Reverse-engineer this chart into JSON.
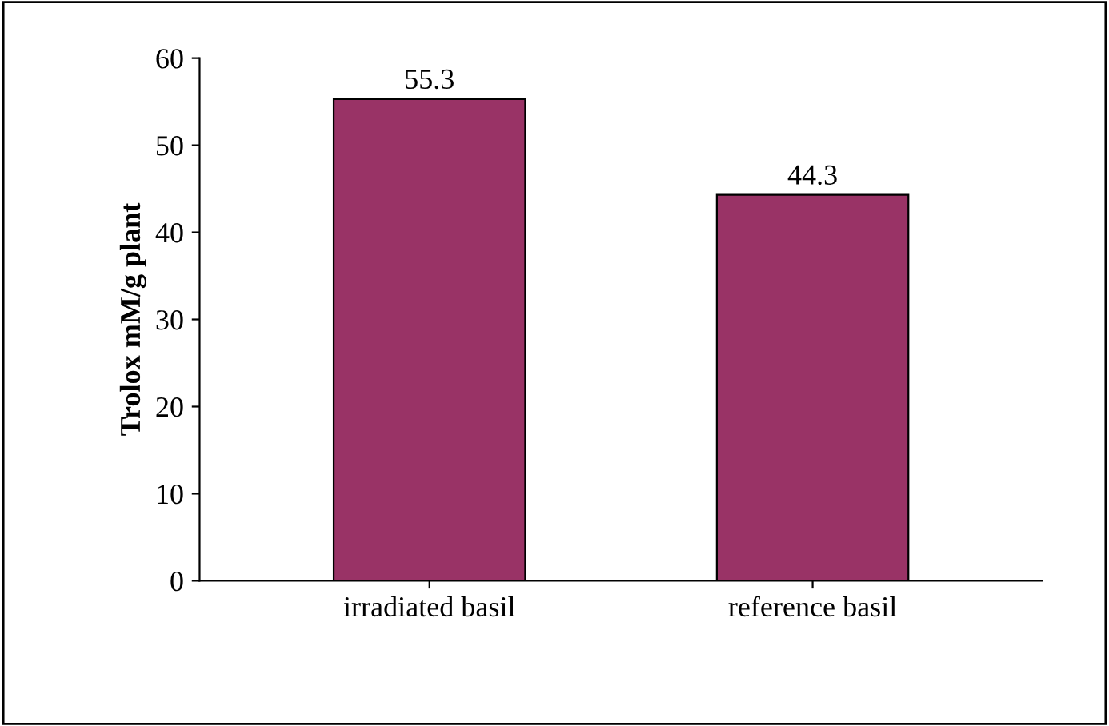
{
  "chart_data": {
    "type": "bar",
    "ylabel": "Trolox mM/g plant",
    "categories": [
      "irradiated basil",
      "reference basil"
    ],
    "values": [
      55.3,
      44.3
    ],
    "color": "#993366",
    "ylim": [
      0,
      60
    ],
    "yticks": [
      0,
      10,
      20,
      30,
      40,
      50,
      60
    ],
    "data_labels": true,
    "grid": false
  }
}
